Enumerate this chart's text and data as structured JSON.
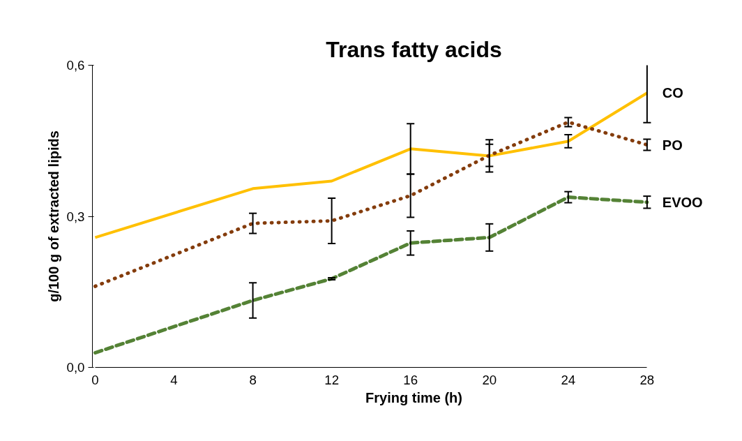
{
  "chart_data": {
    "type": "line",
    "title": "Trans fatty acids",
    "xlabel": "Frying time (h)",
    "ylabel": "g/100 g of extracted lipids",
    "x": [
      0,
      8,
      12,
      16,
      20,
      24,
      28
    ],
    "series": [
      {
        "name": "CO",
        "color": "#ffc000",
        "line_style": "solid",
        "values": [
          0.258,
          0.355,
          0.37,
          0.434,
          0.42,
          0.449,
          0.545
        ],
        "errors": [
          null,
          null,
          null,
          0.05,
          0.032,
          0.013,
          0.059
        ]
      },
      {
        "name": "PO",
        "color": "#843c0c",
        "line_style": "dotted",
        "values": [
          0.161,
          0.286,
          0.291,
          0.341,
          0.421,
          0.487,
          0.442
        ],
        "errors": [
          null,
          0.02,
          0.045,
          0.043,
          0.022,
          0.009,
          0.011
        ]
      },
      {
        "name": "EVOO",
        "color": "#548235",
        "line_style": "dashed",
        "values": [
          0.029,
          0.133,
          0.176,
          0.247,
          0.258,
          0.338,
          0.328
        ],
        "errors": [
          null,
          0.035,
          0.002,
          0.024,
          0.027,
          0.011,
          0.012
        ]
      }
    ],
    "xlim": [
      0,
      28
    ],
    "ylim": [
      0,
      0.6
    ],
    "xticks": [
      0,
      4,
      8,
      12,
      16,
      20,
      24,
      28
    ],
    "yticks": [
      {
        "value": 0,
        "label": "0,0"
      },
      {
        "value": 0.3,
        "label": "0,3"
      },
      {
        "value": 0.6,
        "label": "0,6"
      }
    ],
    "grid": false
  }
}
